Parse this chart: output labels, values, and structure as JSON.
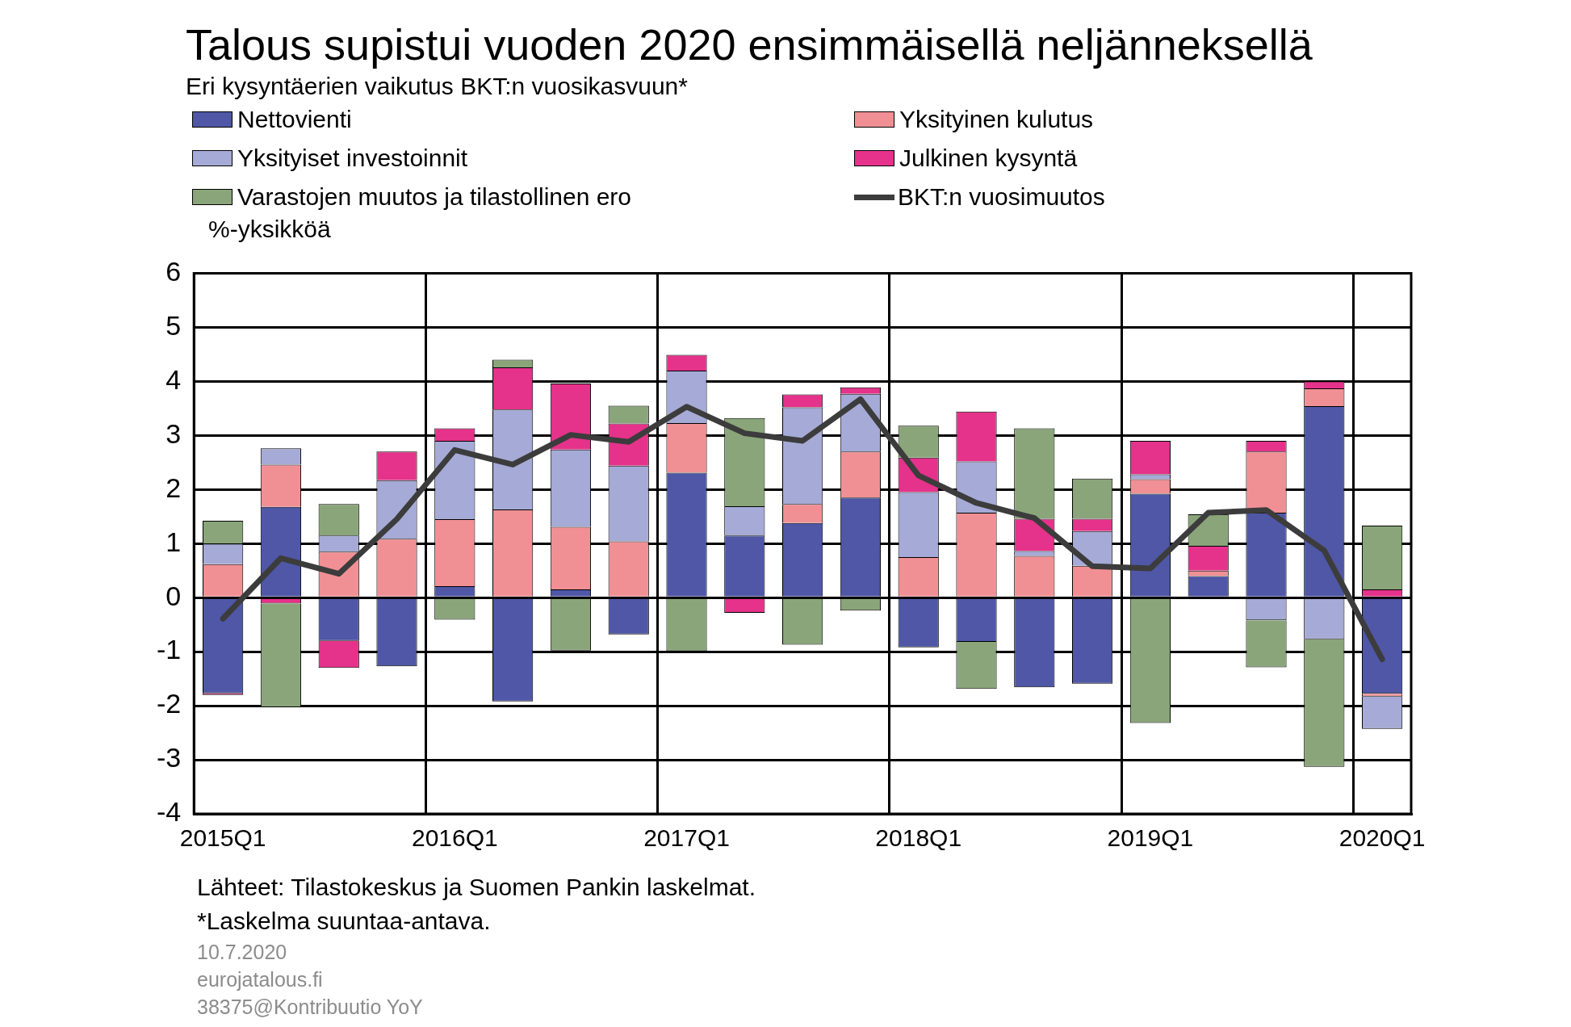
{
  "chart_data": {
    "type": "bar",
    "title": "Talous supistui vuoden 2020 ensimmäisellä neljänneksellä",
    "subtitle": "Eri kysyntäerien vaikutus BKT:n vuosikasvuun*",
    "ylabel": "%-yksikköä",
    "categories": [
      "2015Q1",
      null,
      null,
      null,
      "2016Q1",
      null,
      null,
      null,
      "2017Q1",
      null,
      null,
      null,
      "2018Q1",
      null,
      null,
      null,
      "2019Q1",
      null,
      null,
      null,
      "2020Q1"
    ],
    "stacked": true,
    "legend": "top",
    "grid": true,
    "ylim": [
      -4,
      6
    ],
    "yticks": [
      -4,
      -3,
      -2,
      -1,
      0,
      1,
      2,
      3,
      4,
      5,
      6
    ],
    "series": [
      {
        "name": "Nettovienti",
        "color": "#4f57a6",
        "values": [
          -1.77,
          1.68,
          -0.8,
          -1.27,
          0.21,
          -1.92,
          0.15,
          -0.68,
          2.31,
          1.15,
          1.38,
          1.85,
          -0.92,
          -0.82,
          -1.66,
          -1.59,
          1.92,
          0.4,
          1.57,
          3.54,
          -1.78
        ]
      },
      {
        "name": "Yksityinen kulutus",
        "color": "#f09095",
        "values": [
          0.62,
          0.78,
          0.85,
          1.09,
          1.24,
          1.63,
          1.16,
          1.04,
          0.92,
          null,
          0.35,
          0.85,
          0.75,
          1.57,
          0.77,
          0.59,
          0.27,
          0.1,
          1.13,
          0.33,
          -0.05
        ]
      },
      {
        "name": "Yksityiset investoinnit",
        "color": "#a6aad6",
        "values": [
          0.38,
          0.3,
          0.3,
          1.08,
          1.45,
          1.85,
          1.43,
          1.4,
          0.97,
          0.54,
          1.79,
          1.07,
          1.2,
          0.95,
          0.09,
          0.64,
          0.09,
          null,
          -0.42,
          -0.77,
          -0.6
        ]
      },
      {
        "name": "Julkinen kysyntä",
        "color": "#e5328a",
        "values": [
          -0.03,
          -0.11,
          -0.5,
          0.53,
          0.23,
          0.78,
          1.22,
          0.78,
          0.29,
          -0.28,
          0.24,
          0.12,
          0.64,
          0.92,
          0.6,
          0.23,
          0.62,
          0.46,
          0.2,
          0.13,
          0.15
        ]
      },
      {
        "name": "Varastojen muutos ja tilastollinen ero",
        "color": "#8aa57a",
        "values": [
          0.42,
          -1.92,
          0.58,
          null,
          -0.41,
          0.14,
          -0.98,
          0.33,
          -0.99,
          1.63,
          -0.87,
          -0.24,
          0.59,
          -0.87,
          1.67,
          0.74,
          -2.32,
          0.58,
          -0.87,
          -2.36,
          1.18
        ]
      },
      {
        "name": "BKT:n vuosimuutos",
        "type": "line",
        "color": "#3c3c3c",
        "values": [
          -0.39,
          0.73,
          0.44,
          1.45,
          2.73,
          2.46,
          3.01,
          2.88,
          3.53,
          3.04,
          2.9,
          3.67,
          2.26,
          1.75,
          1.47,
          0.58,
          0.54,
          1.57,
          1.62,
          0.87,
          -1.14
        ]
      }
    ],
    "annotations": [
      "Lähteet: Tilastokeskus ja Suomen Pankin laskelmat.",
      "*Laskelma suuntaa-antava.",
      "10.7.2020",
      "eurojatalous.fi",
      "38375@Kontribuutio  YoY"
    ]
  }
}
